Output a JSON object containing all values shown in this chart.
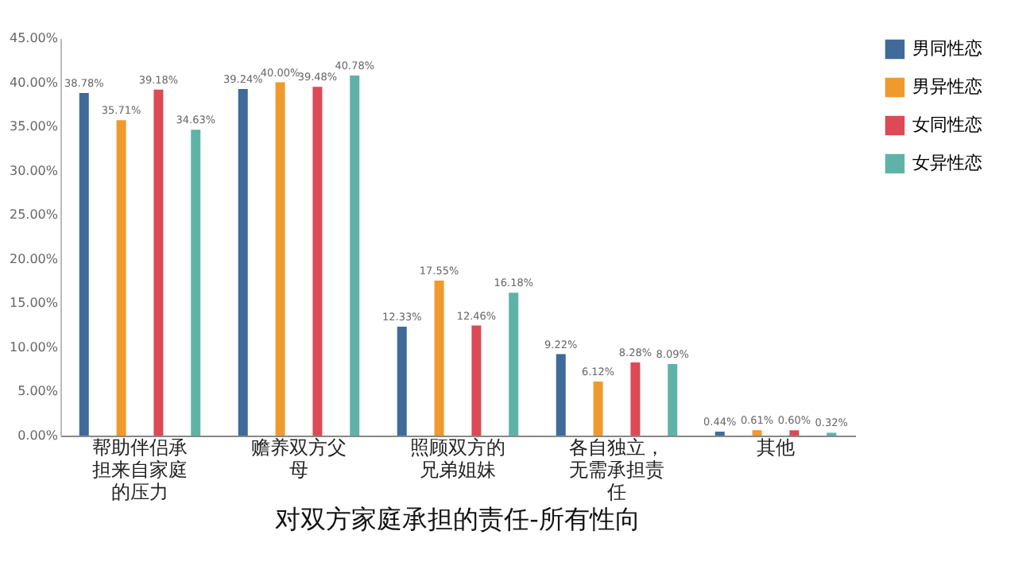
{
  "chart_data": {
    "type": "bar",
    "title": "对双方家庭承担的责任-所有性向",
    "categories": [
      "帮助伴侣承担来自家庭的压力",
      "赡养双方父母",
      "照顾双方的兄弟姐妹",
      "各自独立，无需承担责任",
      "其他"
    ],
    "series": [
      {
        "name": "男同性恋",
        "color": "#3f6a9a",
        "values": [
          38.78,
          39.24,
          12.33,
          9.22,
          0.44
        ],
        "value_labels": [
          "38.78%",
          "39.24%",
          "12.33%",
          "9.22%",
          "0.44%"
        ]
      },
      {
        "name": "男异性恋",
        "color": "#ef9a2c",
        "values": [
          35.71,
          40.0,
          17.55,
          6.12,
          0.61
        ],
        "value_labels": [
          "35.71%",
          "40.00%",
          "17.55%",
          "6.12%",
          "0.61%"
        ]
      },
      {
        "name": "女同性恋",
        "color": "#dc4a55",
        "values": [
          39.18,
          39.48,
          12.46,
          8.28,
          0.6
        ],
        "value_labels": [
          "39.18%",
          "39.48%",
          "12.46%",
          "8.28%",
          "0.60%"
        ]
      },
      {
        "name": "女异性恋",
        "color": "#5fb3a6",
        "values": [
          34.63,
          40.78,
          16.18,
          8.09,
          0.32
        ],
        "value_labels": [
          "34.63%",
          "40.78%",
          "16.18%",
          "8.09%",
          "0.32%"
        ]
      }
    ],
    "ylim": [
      0,
      45
    ],
    "yticks": [
      {
        "value": 0,
        "label": "0.00%"
      },
      {
        "value": 5,
        "label": "5.00%"
      },
      {
        "value": 10,
        "label": "10.00%"
      },
      {
        "value": 15,
        "label": "15.00%"
      },
      {
        "value": 20,
        "label": "20.00%"
      },
      {
        "value": 25,
        "label": "25.00%"
      },
      {
        "value": 30,
        "label": "30.00%"
      },
      {
        "value": 35,
        "label": "35.00%"
      },
      {
        "value": 40,
        "label": "40.00%"
      },
      {
        "value": 45,
        "label": "45.00%"
      }
    ],
    "legend": "right",
    "grid": false
  }
}
